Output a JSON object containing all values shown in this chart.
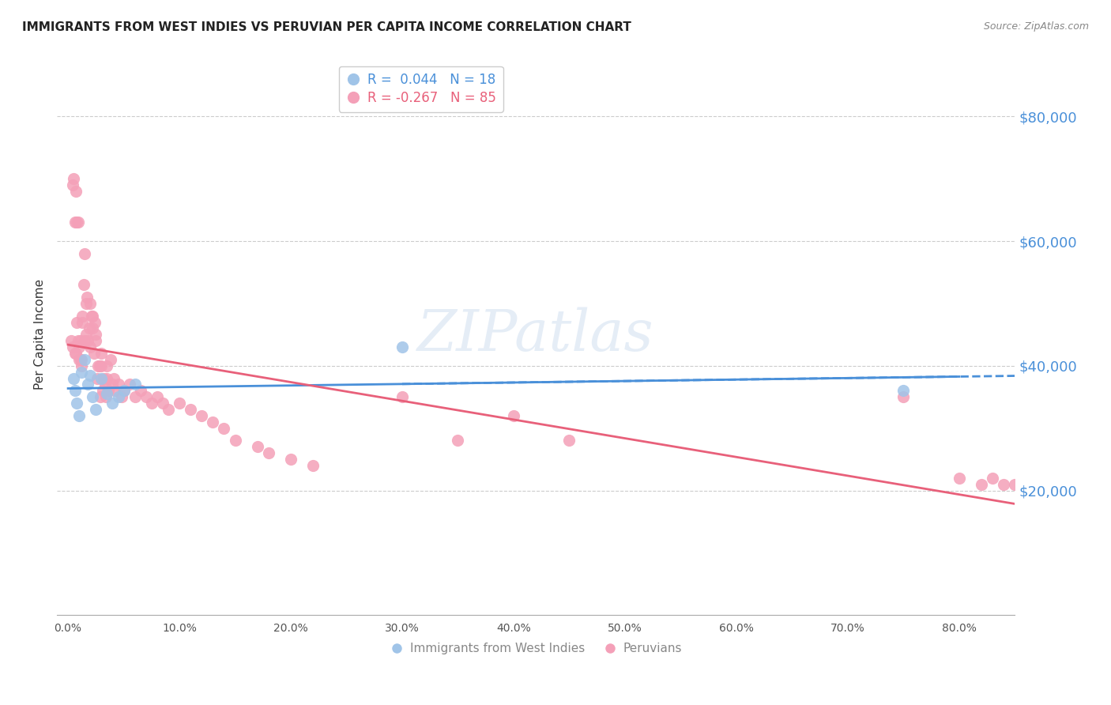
{
  "title": "IMMIGRANTS FROM WEST INDIES VS PERUVIAN PER CAPITA INCOME CORRELATION CHART",
  "source": "Source: ZipAtlas.com",
  "ylabel": "Per Capita Income",
  "xlabel_ticks": [
    "0.0%",
    "10.0%",
    "20.0%",
    "30.0%",
    "40.0%",
    "50.0%",
    "60.0%",
    "70.0%",
    "80.0%"
  ],
  "xlabel_vals": [
    0.0,
    0.1,
    0.2,
    0.3,
    0.4,
    0.5,
    0.6,
    0.7,
    0.8
  ],
  "ytick_labels": [
    "$20,000",
    "$40,000",
    "$60,000",
    "$80,000"
  ],
  "ytick_vals": [
    20000,
    40000,
    60000,
    80000
  ],
  "ylim": [
    0,
    90000
  ],
  "xlim": [
    -0.01,
    0.85
  ],
  "watermark": "ZIPatlas",
  "legend_entries": [
    {
      "label": "R =  0.044   N = 18",
      "color": "#6ea6d8"
    },
    {
      "label": "R = -0.267   N = 85",
      "color": "#f07090"
    }
  ],
  "blue_scatter_x": [
    0.005,
    0.006,
    0.008,
    0.01,
    0.012,
    0.015,
    0.018,
    0.02,
    0.022,
    0.025,
    0.03,
    0.035,
    0.04,
    0.045,
    0.05,
    0.06,
    0.3,
    0.75
  ],
  "blue_scatter_y": [
    38000,
    36000,
    34000,
    32000,
    39000,
    41000,
    37000,
    38500,
    35000,
    33000,
    38000,
    35500,
    34000,
    35000,
    36000,
    37000,
    43000,
    36000
  ],
  "pink_scatter_x": [
    0.003,
    0.004,
    0.004,
    0.005,
    0.006,
    0.006,
    0.007,
    0.007,
    0.008,
    0.008,
    0.009,
    0.009,
    0.01,
    0.01,
    0.011,
    0.011,
    0.012,
    0.012,
    0.013,
    0.013,
    0.014,
    0.015,
    0.015,
    0.016,
    0.016,
    0.017,
    0.018,
    0.019,
    0.02,
    0.02,
    0.021,
    0.022,
    0.022,
    0.023,
    0.024,
    0.025,
    0.025,
    0.026,
    0.027,
    0.028,
    0.029,
    0.03,
    0.03,
    0.031,
    0.032,
    0.033,
    0.034,
    0.035,
    0.035,
    0.036,
    0.038,
    0.04,
    0.041,
    0.042,
    0.045,
    0.048,
    0.05,
    0.055,
    0.06,
    0.065,
    0.07,
    0.075,
    0.08,
    0.085,
    0.09,
    0.1,
    0.11,
    0.12,
    0.13,
    0.14,
    0.15,
    0.17,
    0.18,
    0.2,
    0.22,
    0.3,
    0.35,
    0.4,
    0.45,
    0.75,
    0.8,
    0.82,
    0.83,
    0.84,
    0.85
  ],
  "pink_scatter_y": [
    44000,
    43000,
    69000,
    70000,
    42000,
    63000,
    42000,
    68000,
    47000,
    63000,
    44000,
    63000,
    41000,
    43000,
    41000,
    44000,
    41000,
    40000,
    47000,
    48000,
    53000,
    44000,
    58000,
    45000,
    50000,
    51000,
    44000,
    46000,
    43000,
    50000,
    48000,
    46000,
    48000,
    42000,
    47000,
    44000,
    45000,
    38000,
    40000,
    40000,
    35000,
    40000,
    42000,
    36000,
    38000,
    37000,
    35000,
    38000,
    40000,
    36000,
    41000,
    37000,
    38000,
    36000,
    37000,
    35000,
    36000,
    37000,
    35000,
    36000,
    35000,
    34000,
    35000,
    34000,
    33000,
    34000,
    33000,
    32000,
    31000,
    30000,
    28000,
    27000,
    26000,
    25000,
    24000,
    35000,
    28000,
    32000,
    28000,
    35000,
    22000,
    21000,
    22000,
    21000,
    21000
  ],
  "blue_line_color": "#4a90d9",
  "pink_line_color": "#e8607a",
  "scatter_blue_color": "#a0c4e8",
  "scatter_pink_color": "#f4a0b8",
  "title_fontsize": 11,
  "source_fontsize": 9
}
